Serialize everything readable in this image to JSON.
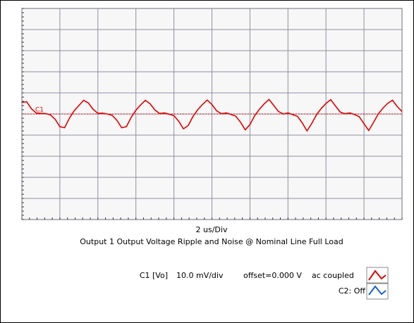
{
  "chart_data": {
    "type": "line",
    "title": "Output 1 Output Voltage Ripple and Noise @ Nominal Line Full Load",
    "x_label": "2 us/Div",
    "x": [
      0,
      0.25,
      0.5,
      0.75,
      1,
      1.25,
      1.5,
      1.75,
      2,
      2.25,
      2.5,
      2.75,
      3,
      3.25,
      3.5,
      3.75,
      4,
      4.25,
      4.5,
      4.75,
      5,
      5.25,
      5.5,
      5.75,
      6,
      6.25,
      6.5,
      6.75,
      7,
      7.25,
      7.5,
      7.75,
      8,
      8.25,
      8.5,
      8.75,
      9,
      9.25,
      9.5,
      9.75,
      10,
      10.25,
      10.5,
      10.75,
      11,
      11.25,
      11.5,
      11.75,
      12,
      12.25,
      12.5,
      12.75,
      13,
      13.25,
      13.5,
      13.75,
      14,
      14.25,
      14.5,
      14.75,
      15,
      15.25,
      15.5,
      15.75,
      16,
      16.25,
      16.5,
      16.75,
      17,
      17.25,
      17.5,
      17.75,
      18,
      18.25,
      18.5,
      18.75,
      19,
      19.25,
      19.5,
      19.75,
      20
    ],
    "series": [
      {
        "name": "C1",
        "color": "#e00000",
        "values": [
          5.5,
          5.8,
          2.5,
          0.5,
          0.3,
          0.2,
          -0.4,
          -2.5,
          -6,
          -6.5,
          -2,
          1.5,
          4,
          6.5,
          5.2,
          2.2,
          0.3,
          0.4,
          0,
          -0.6,
          -3,
          -6.5,
          -6,
          -1.6,
          1.8,
          4.3,
          6.5,
          4.8,
          1.9,
          0.2,
          0.5,
          -0.1,
          -0.8,
          -3.4,
          -7,
          -5.5,
          -1.2,
          2,
          4.5,
          6.6,
          4.5,
          1.5,
          0.1,
          0.5,
          -0.2,
          -1,
          -3.8,
          -7.5,
          -5,
          -0.8,
          2.3,
          4.8,
          6.9,
          4.1,
          1.2,
          0,
          0.5,
          -0.3,
          -1.1,
          -4.2,
          -8,
          -4.5,
          -0.4,
          2.6,
          5,
          6.8,
          3.8,
          0.9,
          0.1,
          0.5,
          -0.2,
          -1.3,
          -4.6,
          -7.8,
          -4,
          0,
          2.8,
          5.1,
          6.5,
          3.5,
          1.2
        ]
      }
    ],
    "xlim": [
      0,
      20
    ],
    "ylim": [
      -50,
      50
    ],
    "channel": "C1 [Vo]",
    "scale": "10.0 mV/div",
    "offset": "offset=0.000 V",
    "coupling": "ac coupled",
    "c2": "C2: Off"
  }
}
